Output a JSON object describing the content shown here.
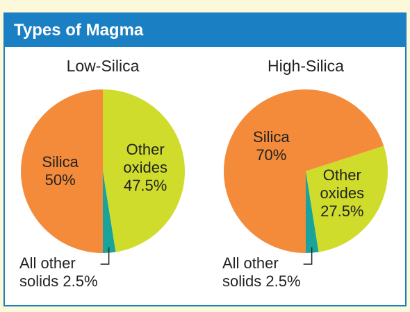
{
  "header": {
    "title": "Types of Magma"
  },
  "chart_data": [
    {
      "type": "pie",
      "title": "Low-Silica",
      "categories": [
        "Silica",
        "Other oxides",
        "All other solids"
      ],
      "values": [
        50,
        47.5,
        2.5
      ],
      "value_labels": [
        "50%",
        "47.5%",
        "2.5%"
      ],
      "colors": [
        "#f38b3a",
        "#cfdc2c",
        "#1aa39b"
      ]
    },
    {
      "type": "pie",
      "title": "High-Silica",
      "categories": [
        "Silica",
        "Other oxides",
        "All other solids"
      ],
      "values": [
        70,
        27.5,
        2.5
      ],
      "value_labels": [
        "70%",
        "27.5%",
        "2.5%"
      ],
      "colors": [
        "#f38b3a",
        "#cfdc2c",
        "#1aa39b"
      ]
    }
  ]
}
